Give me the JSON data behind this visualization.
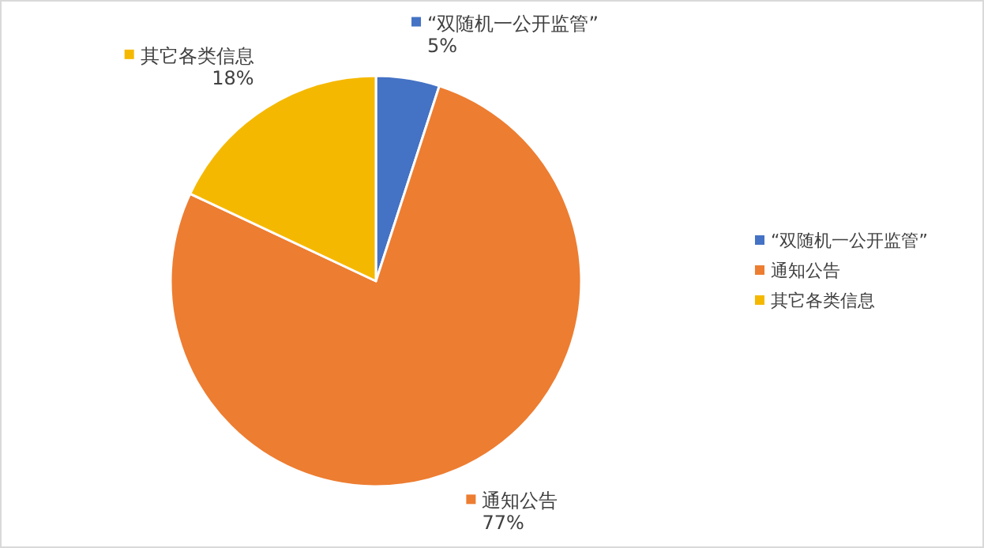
{
  "chart_data": {
    "type": "pie",
    "categories": [
      "“双随机一公开监管”",
      "通知公告",
      "其它各类信息"
    ],
    "values": [
      5,
      77,
      18
    ],
    "colors": [
      "#4472c4",
      "#ed7d31",
      "#f5b800"
    ],
    "value_labels": [
      "5%",
      "77%",
      "18%"
    ],
    "legend": "right"
  }
}
